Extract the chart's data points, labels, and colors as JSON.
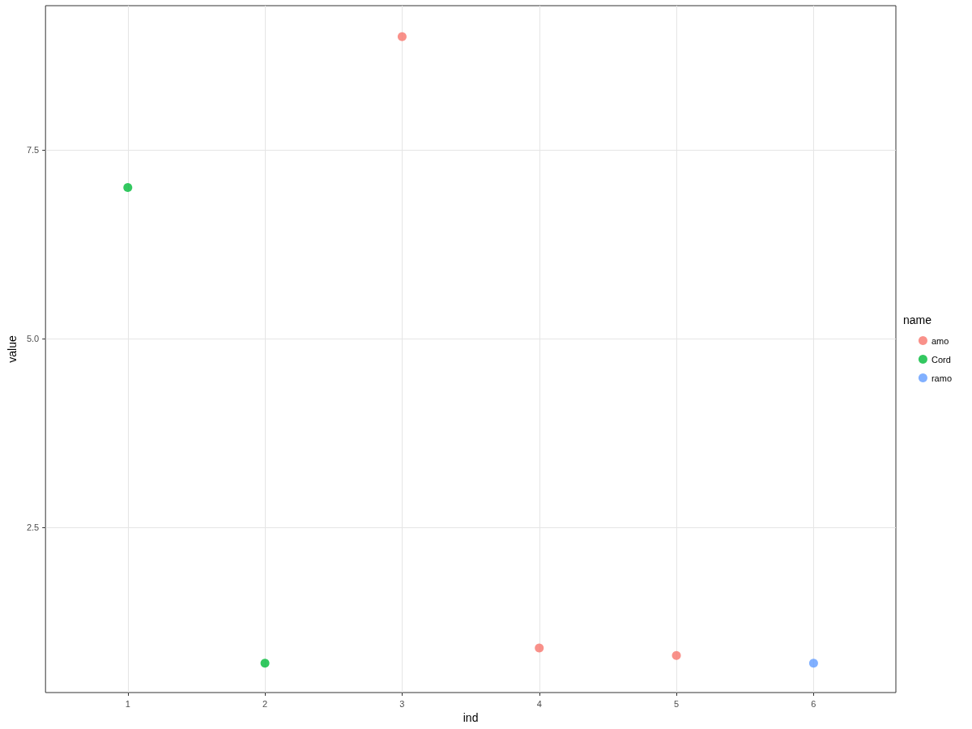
{
  "chart_data": {
    "type": "scatter",
    "xlabel": "ind",
    "ylabel": "value",
    "legend_title": "name",
    "series": [
      {
        "name": "amo",
        "color": "#f8766d",
        "x": [
          3,
          4,
          5
        ],
        "values": [
          9.0,
          0.9,
          0.8
        ]
      },
      {
        "name": "Cord",
        "color": "#00ba38",
        "x": [
          1,
          2
        ],
        "values": [
          7.0,
          0.7
        ]
      },
      {
        "name": "ramo",
        "color": "#619cff",
        "x": [
          6
        ],
        "values": [
          0.7
        ]
      }
    ],
    "xlim": [
      0.4,
      6.6
    ],
    "xticks": [
      1,
      2,
      3,
      4,
      5,
      6
    ],
    "ylim": [
      0.31,
      9.41
    ],
    "yticks": [
      {
        "value": 2.5,
        "label": "2.5"
      },
      {
        "value": 5,
        "label": "5.0"
      },
      {
        "value": 7.5,
        "label": "7.5"
      }
    ],
    "grid": true,
    "legend": "right",
    "marker": "circle"
  }
}
